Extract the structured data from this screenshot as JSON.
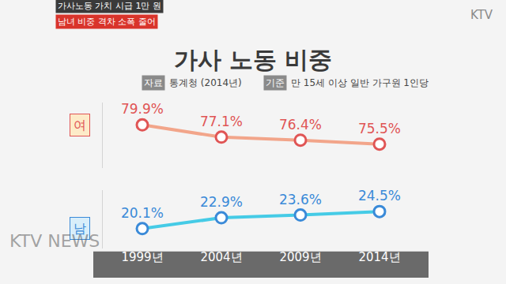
{
  "header": {
    "headline": "가사노동 가치 시급 1만 원",
    "subhead": "남녀 비중 격차 소폭 줄어",
    "channel": "KTV",
    "watermark": "KTV NEWS"
  },
  "chart_data": {
    "type": "line",
    "title": "가사 노동 비중",
    "source_label": "자료",
    "source": "통계청 (2014년)",
    "basis_label": "기준",
    "basis": "만 15세 이상 일반 가구원 1인당",
    "categories": [
      "1999년",
      "2004년",
      "2009년",
      "2014년"
    ],
    "series": [
      {
        "name": "여",
        "color": "#e05555",
        "axis": "y",
        "values": [
          79.9,
          77.1,
          76.4,
          75.5
        ],
        "value_labels": [
          "79.9%",
          "77.1%",
          "76.4%",
          "75.5%"
        ]
      },
      {
        "name": "남",
        "color": "#3a8ad8",
        "axis": "y2",
        "values": [
          20.1,
          22.9,
          23.6,
          24.5
        ],
        "value_labels": [
          "20.1%",
          "22.9%",
          "23.6%",
          "24.5%"
        ]
      }
    ],
    "ylim": [
      70,
      85
    ],
    "y2lim": [
      15,
      30
    ],
    "data_labels": true,
    "tick_labels": "x",
    "grid": false,
    "marker": "circle"
  }
}
